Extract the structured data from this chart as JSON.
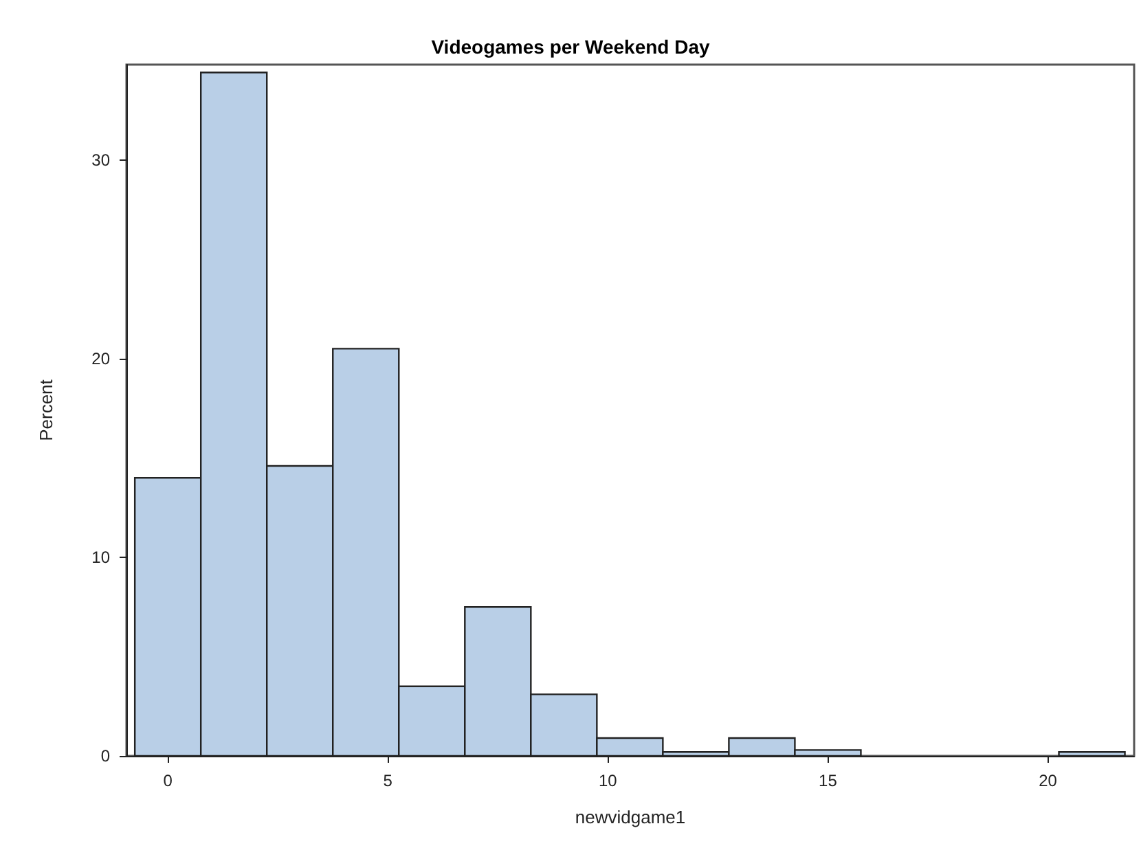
{
  "chart_data": {
    "type": "histogram",
    "title": "Videogames per Weekend Day",
    "xlabel": "newvidgame1",
    "ylabel": "Percent",
    "bins": [
      -0.75,
      0.75,
      2.25,
      3.75,
      5.25,
      6.75,
      8.25,
      9.75,
      11.25,
      12.75,
      14.25,
      15.75,
      17.25,
      18.75,
      20.25,
      21.75
    ],
    "values": [
      14.0,
      34.4,
      14.6,
      20.5,
      3.5,
      7.5,
      3.1,
      0.9,
      0.2,
      0.9,
      0.3,
      0,
      0,
      0,
      0.2
    ],
    "color": "#b9cfe7",
    "xlim": [
      -0.94,
      21.96
    ],
    "xticks": [
      0,
      5,
      10,
      15,
      20
    ],
    "ylim": [
      0,
      34.8
    ],
    "yticks": [
      0,
      10,
      20,
      30
    ],
    "grid": false
  }
}
